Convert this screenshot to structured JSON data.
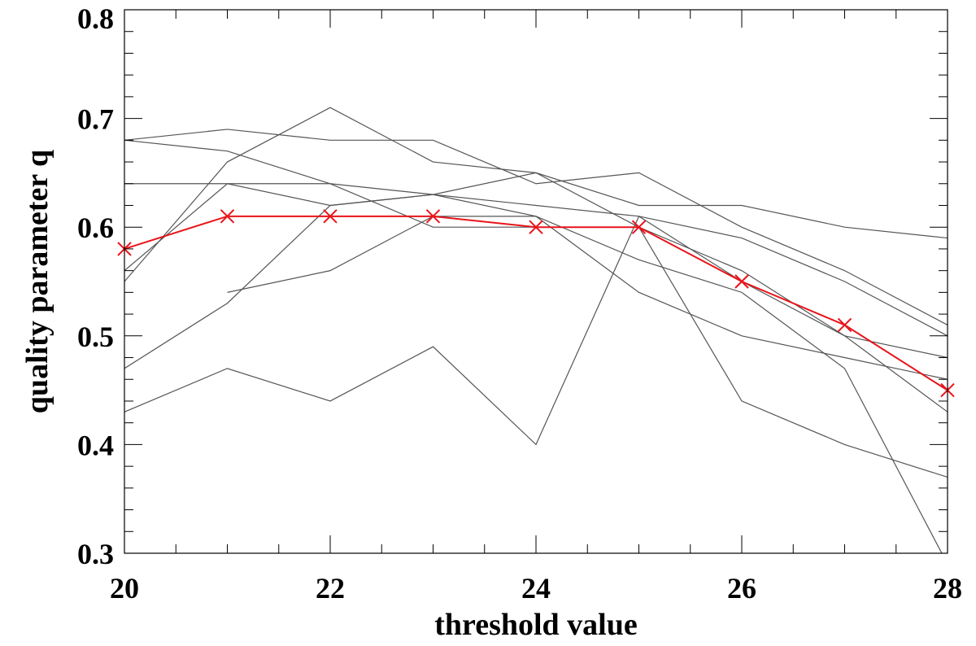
{
  "chart_data": {
    "type": "line",
    "title": "",
    "xlabel": "threshold value",
    "ylabel": "quality parameter q",
    "xlim": [
      20,
      28
    ],
    "ylim": [
      0.3,
      0.8
    ],
    "x_ticks": [
      20,
      22,
      24,
      26,
      28
    ],
    "x_tick_labels": [
      "20",
      "22",
      "24",
      "26",
      "28"
    ],
    "y_ticks": [
      0.3,
      0.4,
      0.5,
      0.6,
      0.7,
      0.8
    ],
    "y_tick_labels": [
      "0.3",
      "0.4",
      "0.5",
      "0.6",
      "0.7",
      "0.8"
    ],
    "grid": false,
    "legend": "none",
    "series_gray": [
      {
        "x": [
          20,
          21,
          22,
          23,
          24,
          25,
          26,
          27,
          28
        ],
        "y": [
          0.68,
          0.69,
          0.68,
          0.68,
          0.64,
          0.65,
          0.6,
          0.56,
          0.51
        ]
      },
      {
        "x": [
          20,
          21,
          22,
          23,
          24,
          25,
          26,
          27,
          28
        ],
        "y": [
          0.68,
          0.67,
          0.64,
          0.6,
          0.6,
          0.6,
          0.56,
          0.5,
          0.43
        ]
      },
      {
        "x": [
          20,
          21,
          22,
          23,
          24,
          25,
          26,
          27,
          28
        ],
        "y": [
          0.64,
          0.64,
          0.64,
          0.63,
          0.62,
          0.61,
          0.59,
          0.55,
          0.5
        ]
      },
      {
        "x": [
          20,
          21,
          22,
          23,
          24,
          25,
          26,
          27,
          28
        ],
        "y": [
          0.55,
          0.66,
          0.71,
          0.66,
          0.65,
          0.62,
          0.62,
          0.6,
          0.59
        ]
      },
      {
        "x": [
          20,
          21,
          22,
          23,
          24,
          25,
          26,
          27,
          28
        ],
        "y": [
          0.56,
          0.64,
          0.62,
          0.63,
          0.61,
          0.57,
          0.54,
          0.47,
          0.29
        ]
      },
      {
        "x": [
          20,
          21,
          22,
          23,
          24,
          25,
          26,
          27,
          28
        ],
        "y": [
          0.47,
          0.53,
          0.62,
          0.63,
          0.65,
          0.6,
          0.44,
          0.4,
          0.37
        ]
      },
      {
        "x": [
          21,
          22,
          23,
          24,
          25,
          26,
          27,
          28
        ],
        "y": [
          0.54,
          0.56,
          0.61,
          0.61,
          0.54,
          0.5,
          0.48,
          0.46
        ]
      },
      {
        "x": [
          20,
          21,
          22,
          23,
          24,
          25,
          26,
          27,
          28
        ],
        "y": [
          0.43,
          0.47,
          0.44,
          0.49,
          0.4,
          0.61,
          0.55,
          0.5,
          0.48
        ]
      }
    ],
    "series_mean": {
      "x": [
        20,
        21,
        22,
        23,
        24,
        25,
        26,
        27,
        28
      ],
      "y": [
        0.58,
        0.61,
        0.61,
        0.61,
        0.6,
        0.6,
        0.55,
        0.51,
        0.45
      ],
      "marker": "x"
    },
    "colors": {
      "gray_series": "#555555",
      "mean_series": "#e8141a",
      "axes": "#000000"
    }
  }
}
